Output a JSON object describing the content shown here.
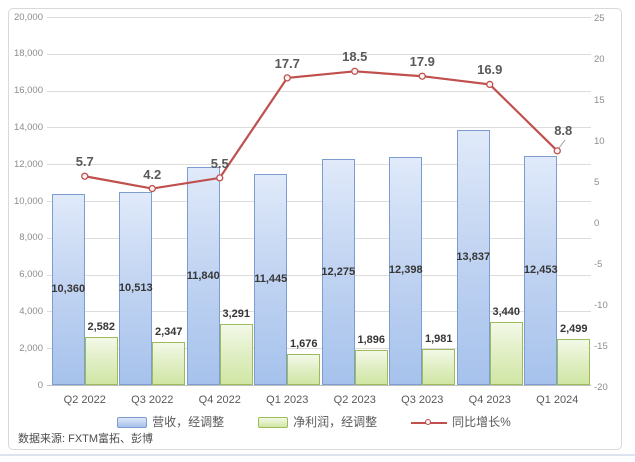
{
  "page": {
    "source_note": "数据来源: FXTM富拓、彭博"
  },
  "legend": {
    "items": [
      {
        "label": "营收，经调整",
        "type": "bar-blue"
      },
      {
        "label": "净利润，经调整",
        "type": "bar-green"
      },
      {
        "label": "同比增长%",
        "type": "line-red"
      }
    ]
  },
  "chart_data": {
    "type": "combo-bar-line",
    "categories": [
      "Q2 2022",
      "Q3 2022",
      "Q4 2022",
      "Q1 2023",
      "Q2 2023",
      "Q3 2023",
      "Q4 2023",
      "Q1 2024"
    ],
    "series": [
      {
        "name": "营收，经调整",
        "type": "bar",
        "axis": "left",
        "values": [
          10360,
          10513,
          11840,
          11445,
          12275,
          12398,
          13837,
          12453
        ],
        "label_position": "inside-center"
      },
      {
        "name": "净利润，经调整",
        "type": "bar",
        "axis": "left",
        "values": [
          2582,
          2347,
          3291,
          1676,
          1896,
          1981,
          3440,
          2499
        ],
        "label_position": "outside-end"
      },
      {
        "name": "同比增长%",
        "type": "line",
        "axis": "right",
        "values": [
          5.7,
          4.2,
          5.5,
          17.7,
          18.5,
          17.9,
          16.9,
          8.8
        ],
        "last_label_has_leader_line": true
      }
    ],
    "left_axis": {
      "min": 0,
      "max": 20000,
      "step": 2000
    },
    "right_axis": {
      "ticks": [
        25,
        20,
        15,
        10,
        5,
        0,
        -5,
        -10,
        -15,
        -20
      ]
    },
    "grid": {
      "horizontal": true,
      "vertical": false
    },
    "legend_position": "bottom",
    "colors": {
      "revenue_fill_top": "#e0eafa",
      "revenue_fill_bottom": "#a6c2ec",
      "revenue_border": "#7d9cd0",
      "profit_fill_top": "#f3f9e8",
      "profit_fill_bottom": "#d0e6a4",
      "profit_border": "#9dbb5a",
      "line": "#c0504d",
      "marker_fill": "#fdf5f5",
      "grid": "#dcdcdc",
      "axis_text": "#8c8c8c",
      "category_text": "#595959",
      "bar_label_text": "#363636",
      "line_label_text": "#595959"
    }
  }
}
